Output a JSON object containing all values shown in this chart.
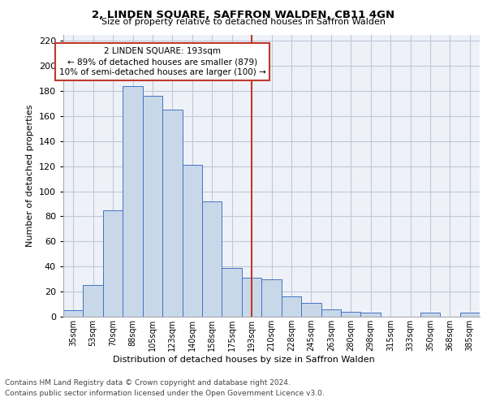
{
  "title": "2, LINDEN SQUARE, SAFFRON WALDEN, CB11 4GN",
  "subtitle": "Size of property relative to detached houses in Saffron Walden",
  "xlabel": "Distribution of detached houses by size in Saffron Walden",
  "ylabel": "Number of detached properties",
  "categories": [
    "35sqm",
    "53sqm",
    "70sqm",
    "88sqm",
    "105sqm",
    "123sqm",
    "140sqm",
    "158sqm",
    "175sqm",
    "193sqm",
    "210sqm",
    "228sqm",
    "245sqm",
    "263sqm",
    "280sqm",
    "298sqm",
    "315sqm",
    "333sqm",
    "350sqm",
    "368sqm",
    "385sqm"
  ],
  "values": [
    5,
    25,
    85,
    184,
    176,
    165,
    121,
    92,
    39,
    31,
    30,
    16,
    11,
    6,
    4,
    3,
    0,
    0,
    3,
    0,
    3
  ],
  "bar_color": "#c8d8e8",
  "bar_edge_color": "#4472c4",
  "vline_x_idx": 9,
  "vline_color": "#c0392b",
  "annotation_line1": "2 LINDEN SQUARE: 193sqm",
  "annotation_line2": "← 89% of detached houses are smaller (879)",
  "annotation_line3": "10% of semi-detached houses are larger (100) →",
  "annotation_box_color": "#c0392b",
  "ylim": [
    0,
    225
  ],
  "yticks": [
    0,
    20,
    40,
    60,
    80,
    100,
    120,
    140,
    160,
    180,
    200,
    220
  ],
  "grid_color": "#c0c8d8",
  "background_color": "#eef2f8",
  "footer_line1": "Contains HM Land Registry data © Crown copyright and database right 2024.",
  "footer_line2": "Contains public sector information licensed under the Open Government Licence v3.0."
}
